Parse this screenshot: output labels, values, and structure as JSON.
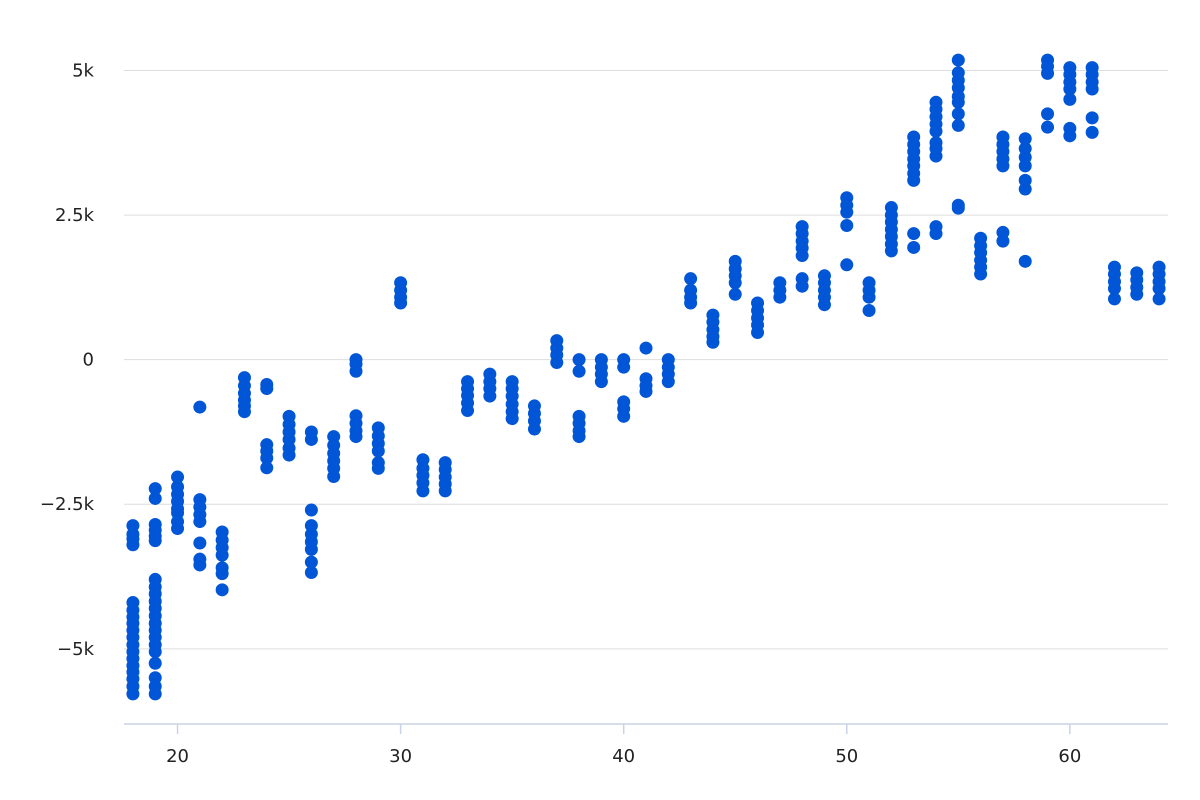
{
  "chart_data": {
    "type": "scatter",
    "title": "",
    "xlabel": "",
    "ylabel": "",
    "xlim": [
      17.6,
      64.4
    ],
    "ylim": [
      -6300,
      5700
    ],
    "x_ticks": [
      20,
      30,
      40,
      50,
      60
    ],
    "x_tick_labels": [
      "20",
      "30",
      "40",
      "50",
      "60"
    ],
    "y_ticks": [
      -5000,
      -2500,
      0,
      2500,
      5000
    ],
    "y_tick_labels": [
      "−5k",
      "−2.5k",
      "0",
      "2.5k",
      "5k"
    ],
    "grid": "horizontal",
    "legend": "none",
    "colors": {
      "point": "#0056D6",
      "grid": "#DDDDDD",
      "axis": "#C9D3E6"
    },
    "series": [
      {
        "points": [
          [
            18,
            -2870
          ],
          [
            18,
            -3020
          ],
          [
            18,
            -3100
          ],
          [
            18,
            -3200
          ],
          [
            18,
            -4200
          ],
          [
            18,
            -4330
          ],
          [
            18,
            -4450
          ],
          [
            18,
            -4560
          ],
          [
            18,
            -4680
          ],
          [
            18,
            -4800
          ],
          [
            18,
            -4930
          ],
          [
            18,
            -5050
          ],
          [
            18,
            -5170
          ],
          [
            18,
            -5290
          ],
          [
            18,
            -5400
          ],
          [
            18,
            -5520
          ],
          [
            18,
            -5650
          ],
          [
            18,
            -5780
          ],
          [
            19,
            -2230
          ],
          [
            19,
            -2400
          ],
          [
            19,
            -2850
          ],
          [
            19,
            -2950
          ],
          [
            19,
            -3050
          ],
          [
            19,
            -3130
          ],
          [
            19,
            -3800
          ],
          [
            19,
            -3930
          ],
          [
            19,
            -4050
          ],
          [
            19,
            -4180
          ],
          [
            19,
            -4300
          ],
          [
            19,
            -4430
          ],
          [
            19,
            -4560
          ],
          [
            19,
            -4680
          ],
          [
            19,
            -4800
          ],
          [
            19,
            -4930
          ],
          [
            19,
            -5050
          ],
          [
            19,
            -5250
          ],
          [
            19,
            -5500
          ],
          [
            19,
            -5650
          ],
          [
            19,
            -5780
          ],
          [
            20,
            -2030
          ],
          [
            20,
            -2200
          ],
          [
            20,
            -2330
          ],
          [
            20,
            -2450
          ],
          [
            20,
            -2580
          ],
          [
            20,
            -2650
          ],
          [
            20,
            -2800
          ],
          [
            20,
            -2920
          ],
          [
            21,
            -820
          ],
          [
            21,
            -2420
          ],
          [
            21,
            -2550
          ],
          [
            21,
            -2680
          ],
          [
            21,
            -2800
          ],
          [
            21,
            -3170
          ],
          [
            21,
            -3450
          ],
          [
            21,
            -3550
          ],
          [
            22,
            -2980
          ],
          [
            22,
            -3120
          ],
          [
            22,
            -3250
          ],
          [
            22,
            -3380
          ],
          [
            22,
            -3600
          ],
          [
            22,
            -3700
          ],
          [
            22,
            -3980
          ],
          [
            23,
            -310
          ],
          [
            23,
            -450
          ],
          [
            23,
            -580
          ],
          [
            23,
            -700
          ],
          [
            23,
            -800
          ],
          [
            23,
            -900
          ],
          [
            24,
            -430
          ],
          [
            24,
            -500
          ],
          [
            24,
            -1470
          ],
          [
            24,
            -1580
          ],
          [
            24,
            -1700
          ],
          [
            24,
            -1870
          ],
          [
            25,
            -980
          ],
          [
            25,
            -1120
          ],
          [
            25,
            -1250
          ],
          [
            25,
            -1380
          ],
          [
            25,
            -1530
          ],
          [
            25,
            -1650
          ],
          [
            26,
            -1250
          ],
          [
            26,
            -1380
          ],
          [
            26,
            -2600
          ],
          [
            26,
            -2870
          ],
          [
            26,
            -3020
          ],
          [
            26,
            -3150
          ],
          [
            26,
            -3280
          ],
          [
            26,
            -3500
          ],
          [
            26,
            -3680
          ],
          [
            27,
            -1330
          ],
          [
            27,
            -1480
          ],
          [
            27,
            -1620
          ],
          [
            27,
            -1750
          ],
          [
            27,
            -1880
          ],
          [
            27,
            -2020
          ],
          [
            28,
            0
          ],
          [
            28,
            -80
          ],
          [
            28,
            -200
          ],
          [
            28,
            -970
          ],
          [
            28,
            -1100
          ],
          [
            28,
            -1230
          ],
          [
            28,
            -1330
          ],
          [
            29,
            -1180
          ],
          [
            29,
            -1320
          ],
          [
            29,
            -1450
          ],
          [
            29,
            -1580
          ],
          [
            29,
            -1780
          ],
          [
            29,
            -1880
          ],
          [
            30,
            1330
          ],
          [
            30,
            1200
          ],
          [
            30,
            1080
          ],
          [
            30,
            980
          ],
          [
            31,
            -1730
          ],
          [
            31,
            -1880
          ],
          [
            31,
            -2000
          ],
          [
            31,
            -2130
          ],
          [
            31,
            -2270
          ],
          [
            32,
            -1780
          ],
          [
            32,
            -1900
          ],
          [
            32,
            -2030
          ],
          [
            32,
            -2150
          ],
          [
            32,
            -2270
          ],
          [
            33,
            -380
          ],
          [
            33,
            -500
          ],
          [
            33,
            -620
          ],
          [
            33,
            -750
          ],
          [
            33,
            -880
          ],
          [
            34,
            -250
          ],
          [
            34,
            -380
          ],
          [
            34,
            -500
          ],
          [
            34,
            -630
          ],
          [
            35,
            -380
          ],
          [
            35,
            -500
          ],
          [
            35,
            -630
          ],
          [
            35,
            -770
          ],
          [
            35,
            -900
          ],
          [
            35,
            -1020
          ],
          [
            36,
            -800
          ],
          [
            36,
            -930
          ],
          [
            36,
            -1060
          ],
          [
            36,
            -1200
          ],
          [
            37,
            330
          ],
          [
            37,
            200
          ],
          [
            37,
            80
          ],
          [
            37,
            -50
          ],
          [
            38,
            0
          ],
          [
            38,
            -200
          ],
          [
            38,
            -980
          ],
          [
            38,
            -1100
          ],
          [
            38,
            -1230
          ],
          [
            38,
            -1330
          ],
          [
            39,
            0
          ],
          [
            39,
            -130
          ],
          [
            39,
            -250
          ],
          [
            39,
            -380
          ],
          [
            40,
            0
          ],
          [
            40,
            -130
          ],
          [
            40,
            -730
          ],
          [
            40,
            -850
          ],
          [
            40,
            -980
          ],
          [
            41,
            200
          ],
          [
            41,
            -330
          ],
          [
            41,
            -450
          ],
          [
            41,
            -550
          ],
          [
            42,
            0
          ],
          [
            42,
            -130
          ],
          [
            42,
            -250
          ],
          [
            42,
            -380
          ],
          [
            43,
            1400
          ],
          [
            43,
            1200
          ],
          [
            43,
            1080
          ],
          [
            43,
            980
          ],
          [
            44,
            770
          ],
          [
            44,
            650
          ],
          [
            44,
            520
          ],
          [
            44,
            400
          ],
          [
            44,
            300
          ],
          [
            45,
            1700
          ],
          [
            45,
            1570
          ],
          [
            45,
            1450
          ],
          [
            45,
            1330
          ],
          [
            45,
            1130
          ],
          [
            46,
            980
          ],
          [
            46,
            850
          ],
          [
            46,
            720
          ],
          [
            46,
            600
          ],
          [
            46,
            470
          ],
          [
            47,
            1330
          ],
          [
            47,
            1200
          ],
          [
            47,
            1080
          ],
          [
            48,
            2300
          ],
          [
            48,
            2180
          ],
          [
            48,
            2050
          ],
          [
            48,
            1930
          ],
          [
            48,
            1800
          ],
          [
            48,
            1400
          ],
          [
            48,
            1270
          ],
          [
            49,
            1450
          ],
          [
            49,
            1330
          ],
          [
            49,
            1200
          ],
          [
            49,
            1080
          ],
          [
            49,
            950
          ],
          [
            50,
            2800
          ],
          [
            50,
            2670
          ],
          [
            50,
            2550
          ],
          [
            50,
            2320
          ],
          [
            50,
            1640
          ],
          [
            51,
            1330
          ],
          [
            51,
            1200
          ],
          [
            51,
            1080
          ],
          [
            51,
            850
          ],
          [
            52,
            2630
          ],
          [
            52,
            2500
          ],
          [
            52,
            2380
          ],
          [
            52,
            2250
          ],
          [
            52,
            2130
          ],
          [
            52,
            2000
          ],
          [
            52,
            1880
          ],
          [
            53,
            3850
          ],
          [
            53,
            3720
          ],
          [
            53,
            3600
          ],
          [
            53,
            3470
          ],
          [
            53,
            3350
          ],
          [
            53,
            3220
          ],
          [
            53,
            3100
          ],
          [
            53,
            2180
          ],
          [
            53,
            1940
          ],
          [
            54,
            4450
          ],
          [
            54,
            4330
          ],
          [
            54,
            4200
          ],
          [
            54,
            4070
          ],
          [
            54,
            3950
          ],
          [
            54,
            3750
          ],
          [
            54,
            3650
          ],
          [
            54,
            3520
          ],
          [
            54,
            2300
          ],
          [
            54,
            2180
          ],
          [
            55,
            5180
          ],
          [
            55,
            4960
          ],
          [
            55,
            4830
          ],
          [
            55,
            4700
          ],
          [
            55,
            4550
          ],
          [
            55,
            4450
          ],
          [
            55,
            4250
          ],
          [
            55,
            4050
          ],
          [
            55,
            2670
          ],
          [
            55,
            2620
          ],
          [
            56,
            2100
          ],
          [
            56,
            1970
          ],
          [
            56,
            1850
          ],
          [
            56,
            1720
          ],
          [
            56,
            1600
          ],
          [
            56,
            1480
          ],
          [
            57,
            3850
          ],
          [
            57,
            3720
          ],
          [
            57,
            3600
          ],
          [
            57,
            3470
          ],
          [
            57,
            3350
          ],
          [
            57,
            2200
          ],
          [
            57,
            2050
          ],
          [
            58,
            3820
          ],
          [
            58,
            3650
          ],
          [
            58,
            3500
          ],
          [
            58,
            3350
          ],
          [
            58,
            3100
          ],
          [
            58,
            2950
          ],
          [
            58,
            1700
          ],
          [
            59,
            5180
          ],
          [
            59,
            5070
          ],
          [
            59,
            4950
          ],
          [
            59,
            4250
          ],
          [
            59,
            4020
          ],
          [
            60,
            5050
          ],
          [
            60,
            4930
          ],
          [
            60,
            4800
          ],
          [
            60,
            4680
          ],
          [
            60,
            4500
          ],
          [
            60,
            4000
          ],
          [
            60,
            3870
          ],
          [
            61,
            5050
          ],
          [
            61,
            4930
          ],
          [
            61,
            4800
          ],
          [
            61,
            4680
          ],
          [
            61,
            4180
          ],
          [
            61,
            3930
          ],
          [
            62,
            1600
          ],
          [
            62,
            1480
          ],
          [
            62,
            1350
          ],
          [
            62,
            1230
          ],
          [
            62,
            1050
          ],
          [
            63,
            1500
          ],
          [
            63,
            1380
          ],
          [
            63,
            1250
          ],
          [
            63,
            1130
          ],
          [
            64,
            1600
          ],
          [
            64,
            1480
          ],
          [
            64,
            1350
          ],
          [
            64,
            1230
          ],
          [
            64,
            1050
          ]
        ]
      }
    ]
  }
}
